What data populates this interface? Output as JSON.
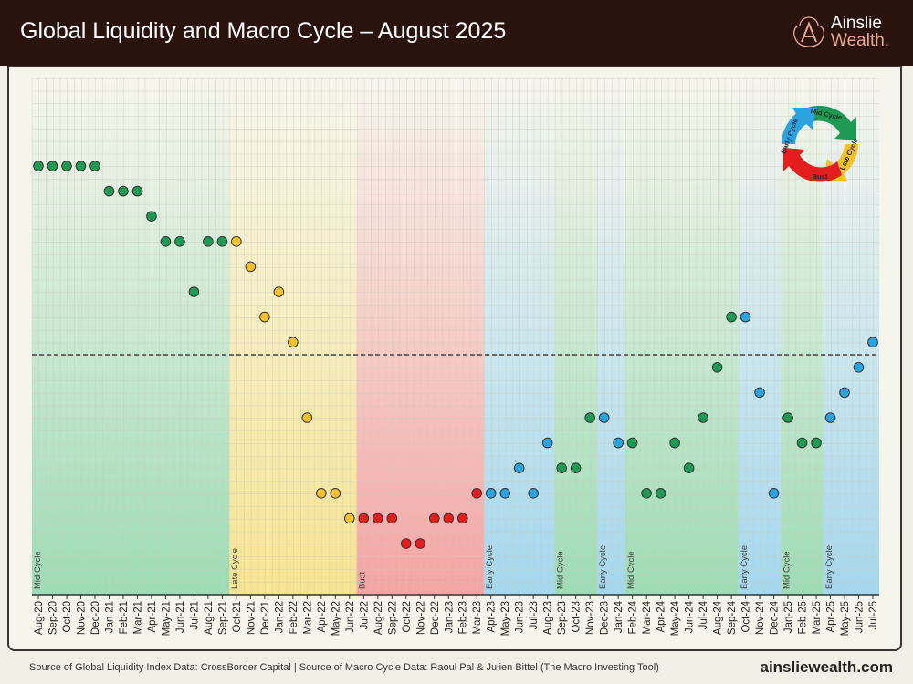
{
  "header": {
    "title": "Global Liquidity and Macro Cycle – August 2025"
  },
  "logo": {
    "line1": "Ainslie",
    "line2": "Wealth."
  },
  "footer": {
    "source": "Source of Global Liquidity Index Data: CrossBorder Capital | Source of Macro Cycle Data: Raoul Pal & Julien Bittel (The Macro Investing Tool)",
    "site": "ainsliewealth.com"
  },
  "cycle_wheel": {
    "labels": [
      "Mid Cycle",
      "Late Cycle",
      "Bust",
      "Early Cycle"
    ]
  },
  "colors": {
    "Mid Cycle": "#1e9a55",
    "Late Cycle": "#f3c12b",
    "Bust": "#e41e1e",
    "Early Cycle": "#2aa3df"
  },
  "chart_data": {
    "type": "scatter",
    "title": "",
    "xlabel": "",
    "ylabel": "",
    "y_note": "no y-axis printed; values are relative levels vs dashed reference line (0)",
    "reference_line": 0,
    "grid": true,
    "categories": [
      "Aug-20",
      "Sep-20",
      "Oct-20",
      "Nov-20",
      "Dec-20",
      "Jan-21",
      "Feb-21",
      "Mar-21",
      "Apr-21",
      "May-21",
      "Jun-21",
      "Jul-21",
      "Aug-21",
      "Sep-21",
      "Oct-21",
      "Nov-21",
      "Dec-21",
      "Jan-22",
      "Feb-22",
      "Mar-22",
      "Apr-22",
      "May-22",
      "Jun-22",
      "Jul-22",
      "Aug-22",
      "Sep-22",
      "Oct-22",
      "Nov-22",
      "Dec-22",
      "Jan-23",
      "Feb-23",
      "Mar-23",
      "Apr-23",
      "May-23",
      "Jun-23",
      "Jul-23",
      "Aug-23",
      "Sep-23",
      "Oct-23",
      "Nov-23",
      "Dec-23",
      "Jan-24",
      "Feb-24",
      "Mar-24",
      "Apr-24",
      "May-24",
      "Jun-24",
      "Jul-24",
      "Aug-24",
      "Sep-24",
      "Oct-24",
      "Nov-24",
      "Dec-24",
      "Jan-25",
      "Feb-25",
      "Mar-25",
      "Apr-25",
      "May-25",
      "Jun-25",
      "Jul-25"
    ],
    "values": [
      7.5,
      7.5,
      7.5,
      7.5,
      7.5,
      6.5,
      6.5,
      6.5,
      5.5,
      4.5,
      4.5,
      2.5,
      4.5,
      4.5,
      4.5,
      3.5,
      1.5,
      2.5,
      0.5,
      -2.5,
      -5.5,
      -5.5,
      -6.5,
      -6.5,
      -6.5,
      -6.5,
      -7.5,
      -7.5,
      -6.5,
      -6.5,
      -6.5,
      -5.5,
      -5.5,
      -5.5,
      -4.5,
      -5.5,
      -3.5,
      -4.5,
      -4.5,
      -2.5,
      -2.5,
      -3.5,
      -3.5,
      -5.5,
      -5.5,
      -3.5,
      -4.5,
      -2.5,
      -0.5,
      1.5,
      1.5,
      -1.5,
      -5.5,
      -2.5,
      -3.5,
      -3.5,
      -2.5,
      -1.5,
      -0.5,
      0.5
    ],
    "regimes": [
      {
        "label": "Mid Cycle",
        "start": "Aug-20",
        "end": "Sep-21"
      },
      {
        "label": "Late Cycle",
        "start": "Oct-21",
        "end": "Jun-22"
      },
      {
        "label": "Bust",
        "start": "Jul-22",
        "end": "Mar-23"
      },
      {
        "label": "Early Cycle",
        "start": "Apr-23",
        "end": "Aug-23"
      },
      {
        "label": "Mid Cycle",
        "start": "Sep-23",
        "end": "Nov-23"
      },
      {
        "label": "Early Cycle",
        "start": "Dec-23",
        "end": "Jan-24"
      },
      {
        "label": "Mid Cycle",
        "start": "Feb-24",
        "end": "Sep-24"
      },
      {
        "label": "Early Cycle",
        "start": "Oct-24",
        "end": "Dec-24"
      },
      {
        "label": "Mid Cycle",
        "start": "Jan-25",
        "end": "Mar-25"
      },
      {
        "label": "Early Cycle",
        "start": "Apr-25",
        "end": "Jul-25"
      }
    ]
  }
}
